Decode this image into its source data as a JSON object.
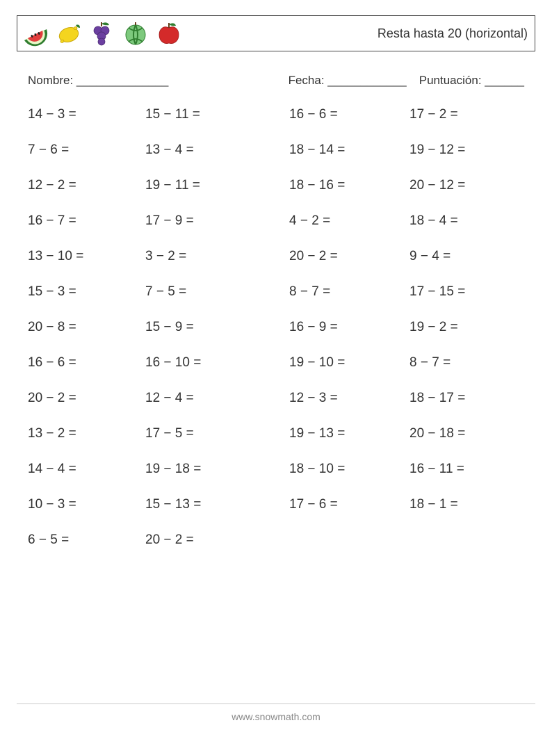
{
  "theme": {
    "text_color": "#333333",
    "border_color": "#444444",
    "footer_color": "#888888",
    "background_color": "#ffffff"
  },
  "header": {
    "title": "Resta hasta 20 (horizontal)",
    "icons": [
      {
        "name": "watermelon",
        "fill": "#e23d3d",
        "rind": "#2f7d2f",
        "seed": "#222222"
      },
      {
        "name": "lemon",
        "fill": "#f4d51f",
        "leaf": "#2f7d2f"
      },
      {
        "name": "grapes",
        "fill": "#6b3fa0",
        "leaf": "#2f7d2f"
      },
      {
        "name": "melon",
        "fill": "#3aa13a",
        "stripe": "#2f7d2f"
      },
      {
        "name": "apple",
        "fill": "#d42a2a",
        "leaf": "#2f7d2f",
        "stem": "#6b3d1e"
      }
    ]
  },
  "info": {
    "name_label": "Nombre: ______________",
    "date_label": "Fecha: ____________",
    "score_label": "Puntuación: ______"
  },
  "worksheet": {
    "type": "subtraction-horizontal",
    "operator": "−",
    "operator_display": "−",
    "suffix": " =",
    "fontsize_pt": 14,
    "columns": 4,
    "rows": [
      [
        [
          14,
          3
        ],
        [
          15,
          11
        ],
        [
          16,
          6
        ],
        [
          17,
          2
        ]
      ],
      [
        [
          7,
          6
        ],
        [
          13,
          4
        ],
        [
          18,
          14
        ],
        [
          19,
          12
        ]
      ],
      [
        [
          12,
          2
        ],
        [
          19,
          11
        ],
        [
          18,
          16
        ],
        [
          20,
          12
        ]
      ],
      [
        [
          16,
          7
        ],
        [
          17,
          9
        ],
        [
          4,
          2
        ],
        [
          18,
          4
        ]
      ],
      [
        [
          13,
          10
        ],
        [
          3,
          2
        ],
        [
          20,
          2
        ],
        [
          9,
          4
        ]
      ],
      [
        [
          15,
          3
        ],
        [
          7,
          5
        ],
        [
          8,
          7
        ],
        [
          17,
          15
        ]
      ],
      [
        [
          20,
          8
        ],
        [
          15,
          9
        ],
        [
          16,
          9
        ],
        [
          19,
          2
        ]
      ],
      [
        [
          16,
          6
        ],
        [
          16,
          10
        ],
        [
          19,
          10
        ],
        [
          8,
          7
        ]
      ],
      [
        [
          20,
          2
        ],
        [
          12,
          4
        ],
        [
          12,
          3
        ],
        [
          18,
          17
        ]
      ],
      [
        [
          13,
          2
        ],
        [
          17,
          5
        ],
        [
          19,
          13
        ],
        [
          20,
          18
        ]
      ],
      [
        [
          14,
          4
        ],
        [
          19,
          18
        ],
        [
          18,
          10
        ],
        [
          16,
          11
        ]
      ],
      [
        [
          10,
          3
        ],
        [
          15,
          13
        ],
        [
          17,
          6
        ],
        [
          18,
          1
        ]
      ],
      [
        [
          6,
          5
        ],
        [
          20,
          2
        ]
      ]
    ]
  },
  "footer": {
    "text": "www.snowmath.com"
  }
}
